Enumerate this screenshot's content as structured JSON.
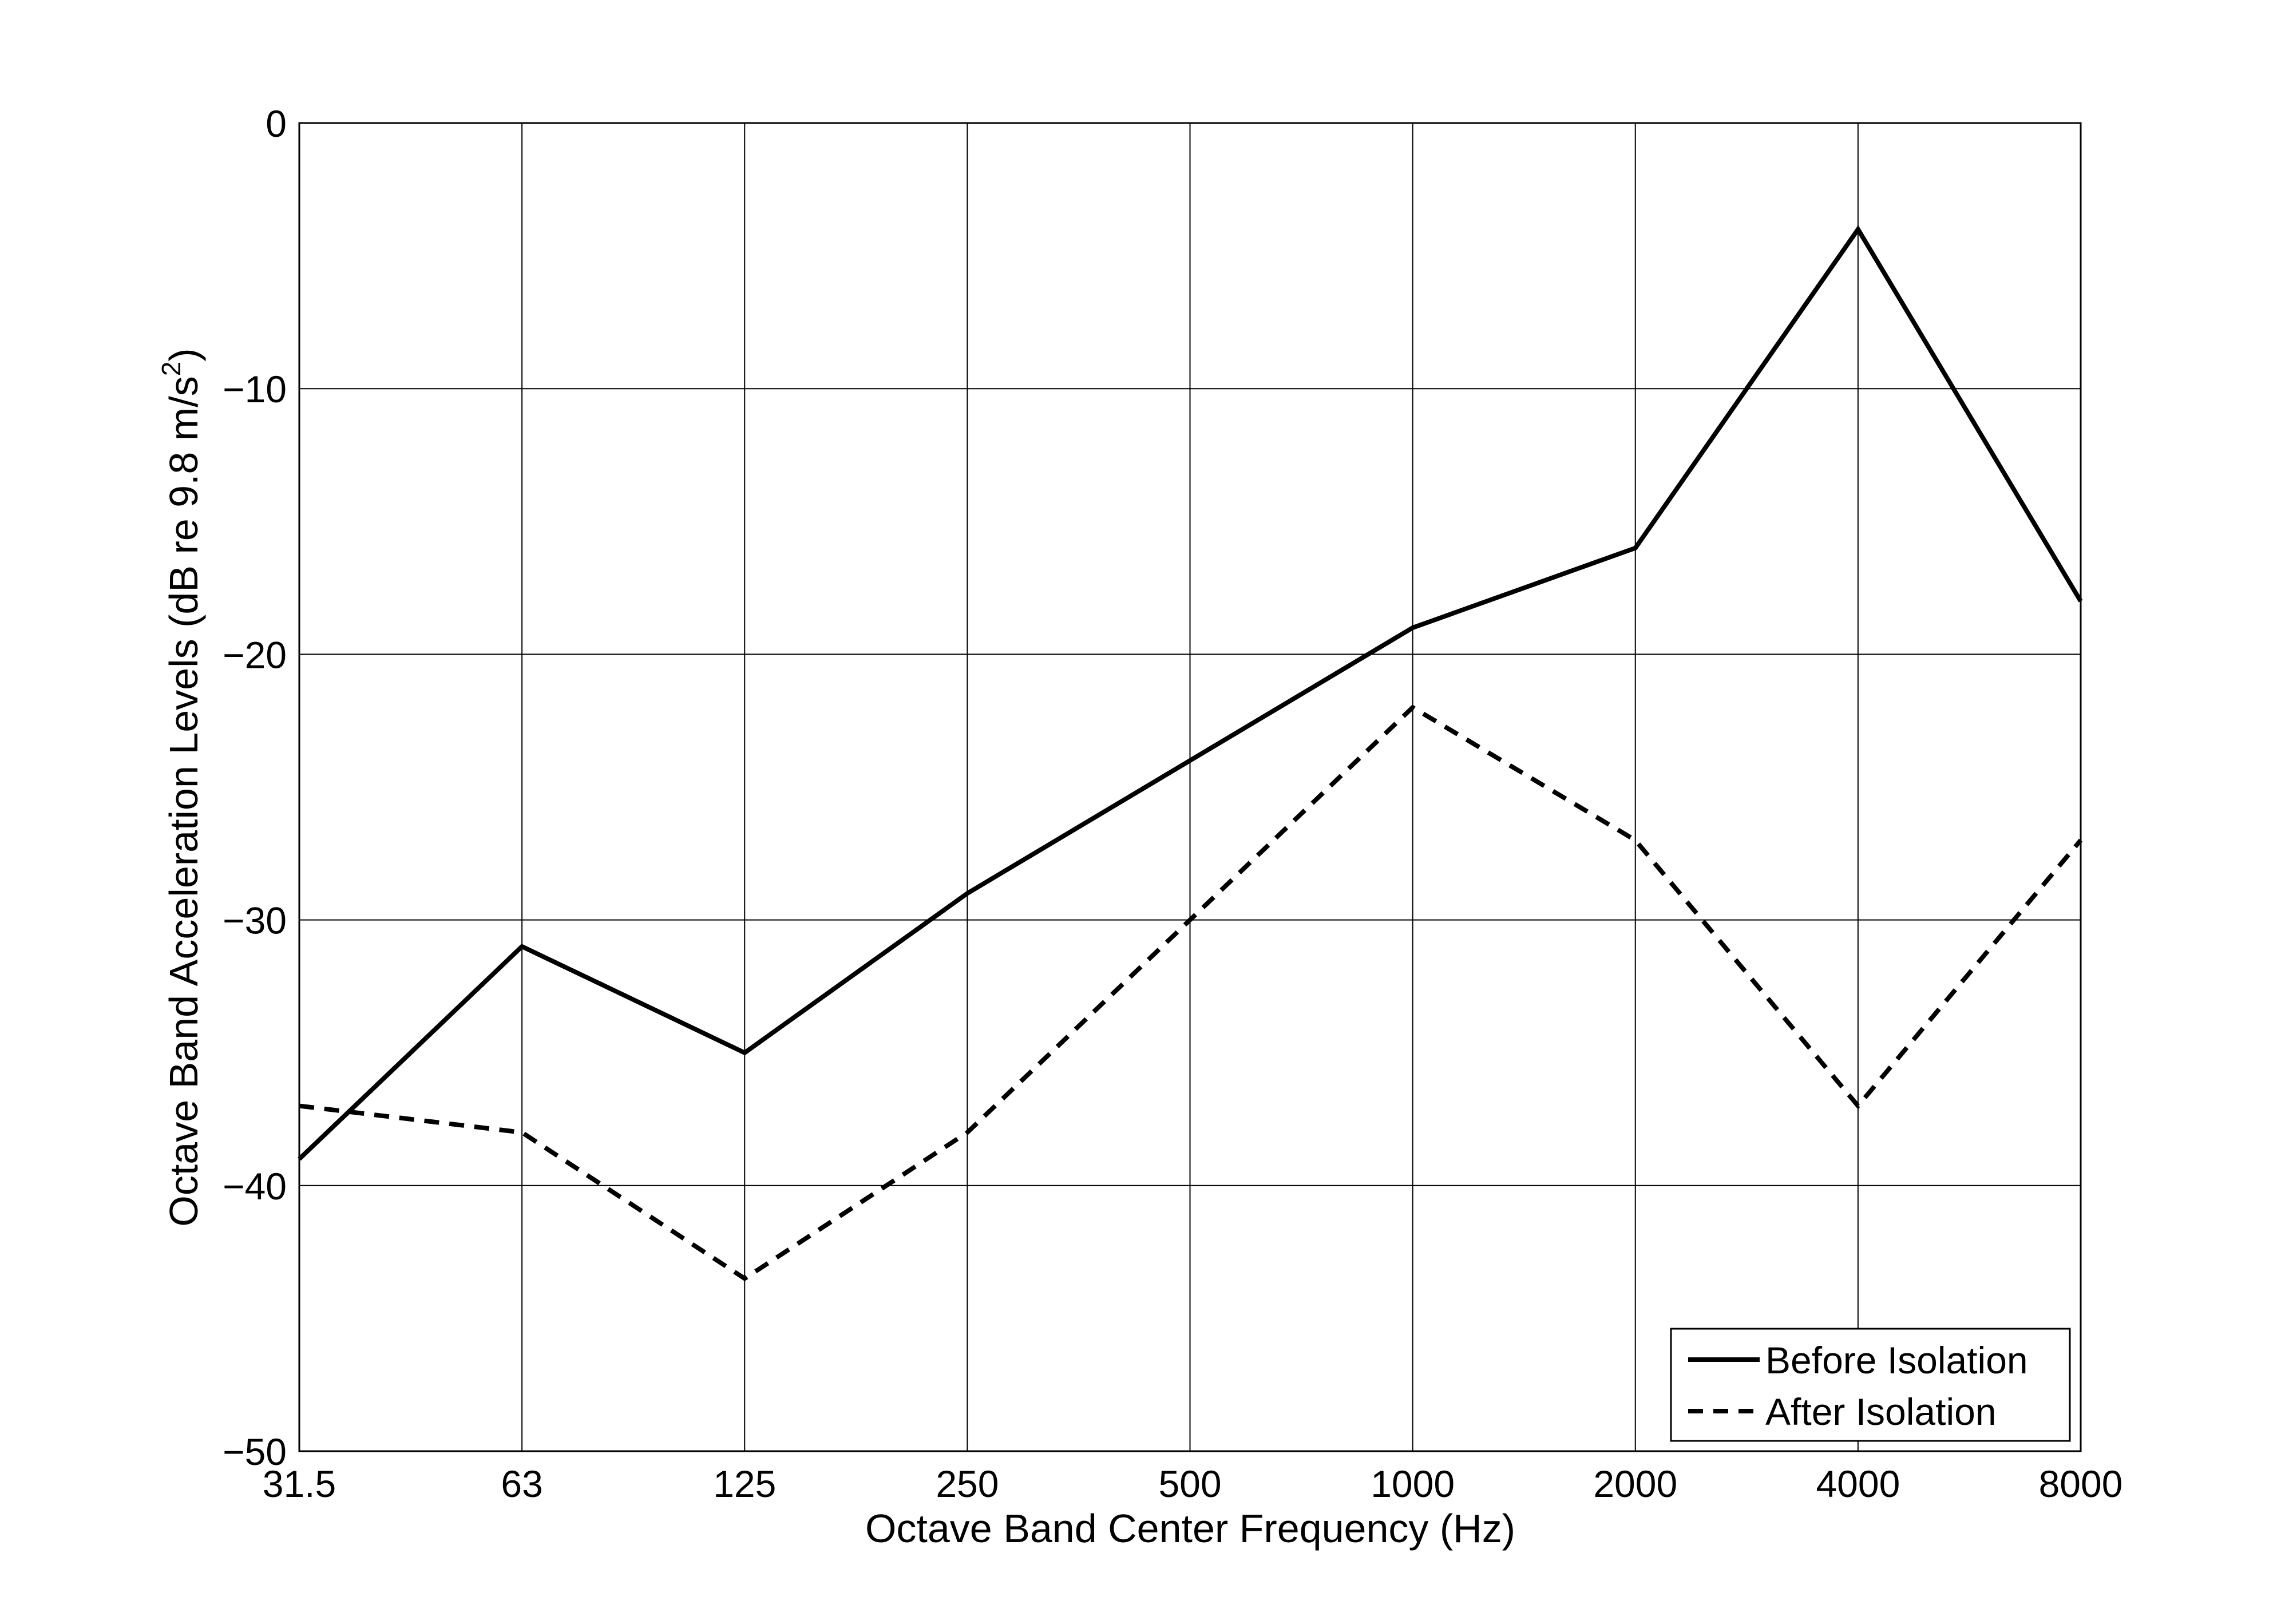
{
  "chart_data": {
    "type": "line",
    "title": "",
    "xlabel": "Octave Band Center Frequency (Hz)",
    "ylabel": "Octave Band Acceleration Levels (dB re 9.8 m/s",
    "ylabel_superscript": "2",
    "ylabel_suffix": ")",
    "categories": [
      "31.5",
      "63",
      "125",
      "250",
      "500",
      "1000",
      "2000",
      "4000",
      "8000"
    ],
    "ylim": [
      -50,
      0
    ],
    "yticks": [
      0,
      -10,
      -20,
      -30,
      -40,
      -50
    ],
    "ytick_labels": [
      "0",
      "−10",
      "−20",
      "−30",
      "−40",
      "−50"
    ],
    "grid": true,
    "legend_position": "bottom-right",
    "series": [
      {
        "name": "Before Isolation",
        "style": "solid",
        "values": [
          -39,
          -31,
          -35,
          -29,
          -24,
          -19,
          -16,
          -4,
          -18
        ]
      },
      {
        "name": "After Isolation",
        "style": "dashed",
        "values": [
          -37,
          -38,
          -43.5,
          -38,
          -30,
          -22,
          -27,
          -37,
          -27
        ]
      }
    ]
  }
}
